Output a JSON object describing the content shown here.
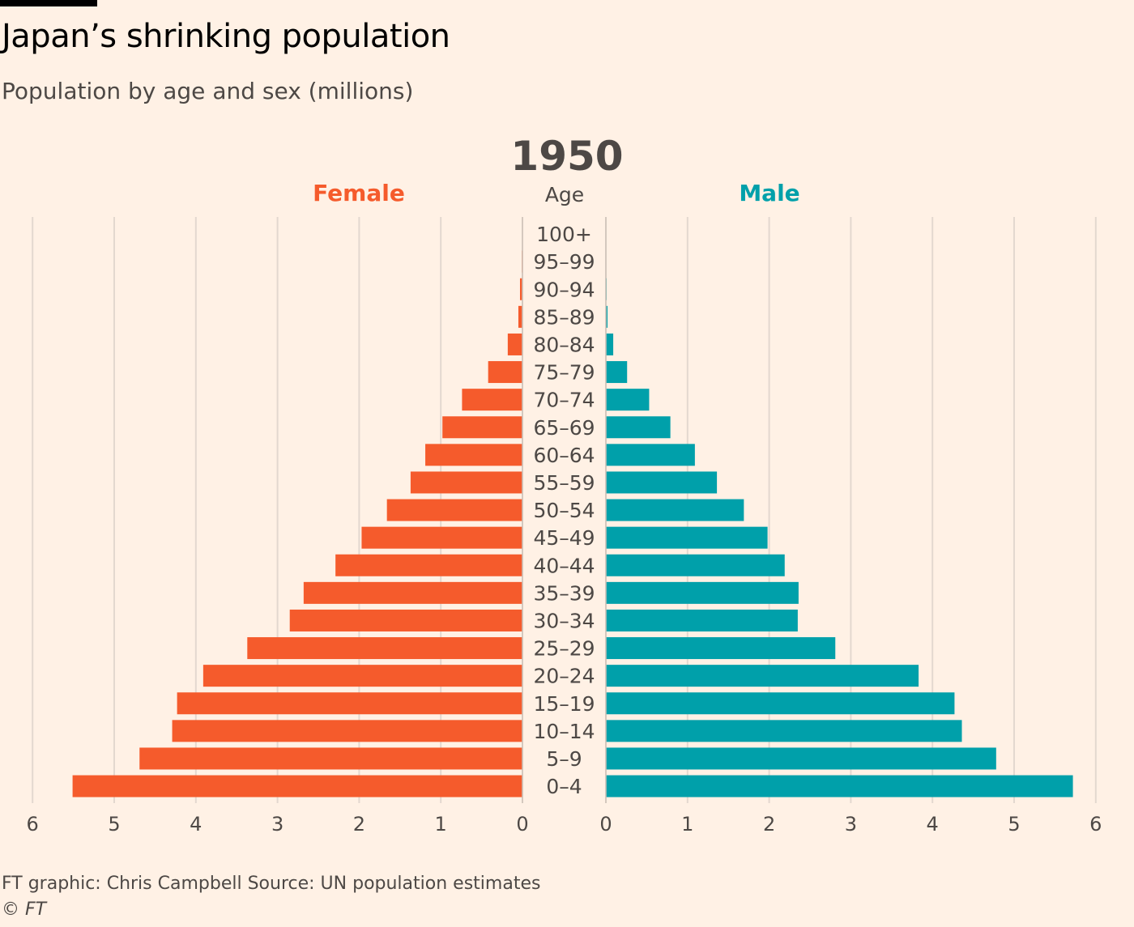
{
  "header": {
    "title": "Japan’s shrinking population",
    "subtitle": "Population by age and sex (millions)"
  },
  "footer": {
    "credit": "FT graphic: Chris Campbell   Source: UN population estimates",
    "copyright_symbol": "©",
    "copyright_name": "FT"
  },
  "colors": {
    "background": "#fff1e5",
    "female": "#f55b2c",
    "male": "#00a0aa",
    "grid": "#e3d8cf",
    "text": "#4d4845"
  },
  "chart_data": {
    "type": "bar",
    "orientation": "horizontal-pyramid",
    "year": "1950",
    "center_label": "Age",
    "categories": [
      "100+",
      "95–99",
      "90–94",
      "85–89",
      "80–84",
      "75–79",
      "70–74",
      "65–69",
      "60–64",
      "55–59",
      "50–54",
      "45–49",
      "40–44",
      "35–39",
      "30–34",
      "25–29",
      "20–24",
      "15–19",
      "10–14",
      "5–9",
      "0–4"
    ],
    "series": [
      {
        "name": "Female",
        "values": [
          0.002,
          0.008,
          0.03,
          0.05,
          0.18,
          0.42,
          0.74,
          0.98,
          1.19,
          1.37,
          1.66,
          1.97,
          2.29,
          2.68,
          2.85,
          3.37,
          3.91,
          4.23,
          4.29,
          4.69,
          5.51
        ]
      },
      {
        "name": "Male",
        "values": [
          0.001,
          0.003,
          0.01,
          0.02,
          0.09,
          0.26,
          0.53,
          0.79,
          1.09,
          1.36,
          1.69,
          1.98,
          2.19,
          2.36,
          2.35,
          2.81,
          3.83,
          4.27,
          4.36,
          4.78,
          5.72
        ]
      }
    ],
    "xlim": [
      0,
      6
    ],
    "xticks": [
      "0",
      "1",
      "2",
      "3",
      "4",
      "5",
      "6"
    ],
    "grid": true
  }
}
